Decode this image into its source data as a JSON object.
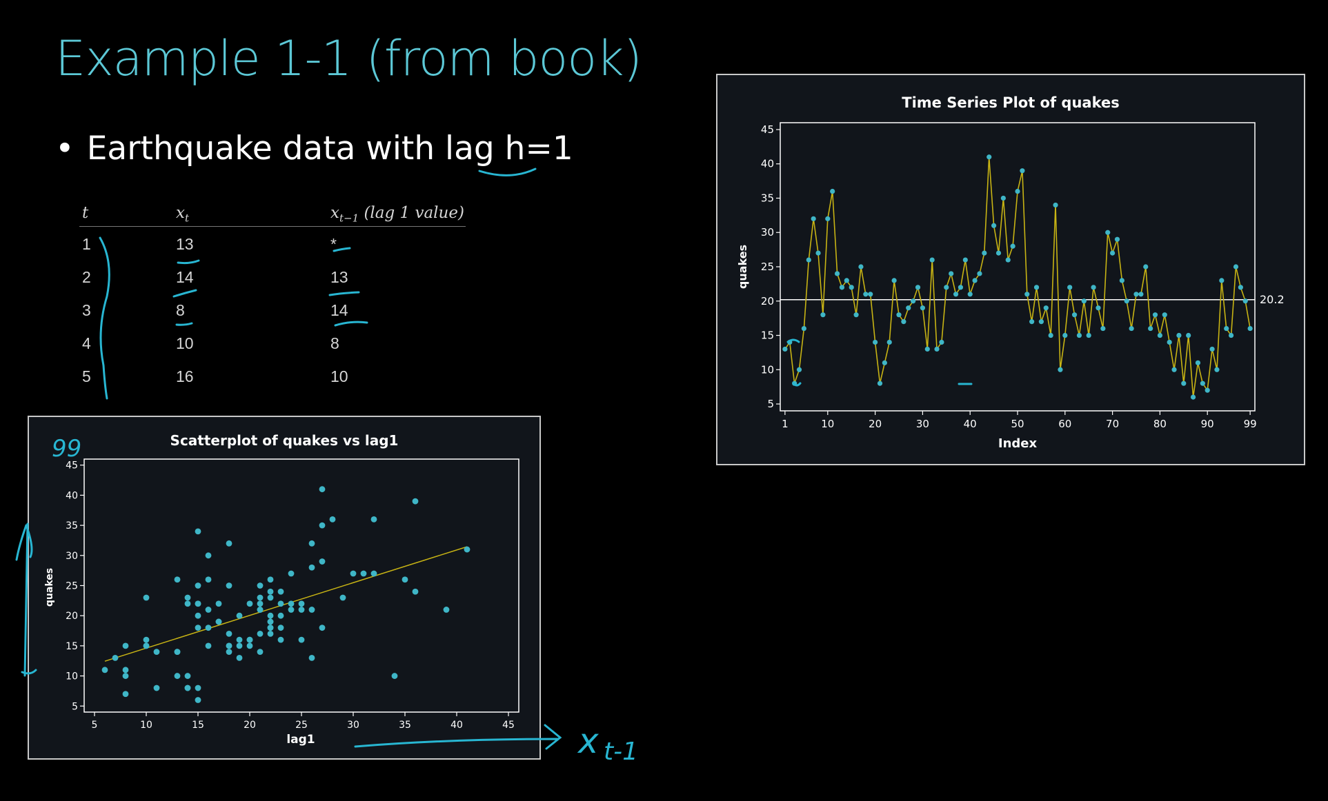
{
  "slide": {
    "title": "Example 1-1 (from book)",
    "bullet": "Earthquake data with lag h=1"
  },
  "lag_table": {
    "headers": {
      "t": "t",
      "xt": "x",
      "xt_sub": "t",
      "xlag": "x",
      "xlag_sub": "t−1",
      "xlag_note": "(lag 1 value)"
    },
    "rows": [
      {
        "t": "1",
        "xt": "13",
        "xlag": "*"
      },
      {
        "t": "2",
        "xt": "14",
        "xlag": "13"
      },
      {
        "t": "3",
        "xt": "8",
        "xlag": "14"
      },
      {
        "t": "4",
        "xt": "10",
        "xlag": "8"
      },
      {
        "t": "5",
        "xt": "16",
        "xlag": "10"
      }
    ]
  },
  "handwriting": {
    "x_axis_note": "x",
    "x_axis_note_sub": "t-1",
    "ninety_nine": "99"
  },
  "colors": {
    "accent": "#5cc8d6",
    "point": "#3fb6c7",
    "line": "#c8b414",
    "ink": "#28b6d2",
    "panel": "#11151b"
  },
  "chart_data": [
    {
      "type": "line",
      "title": "Time Series Plot of quakes",
      "xlabel": "Index",
      "ylabel": "quakes",
      "xlim": [
        0,
        100
      ],
      "ylim": [
        4,
        46
      ],
      "xticks": [
        1,
        10,
        20,
        30,
        40,
        50,
        60,
        70,
        80,
        90,
        99
      ],
      "yticks": [
        5,
        10,
        15,
        20,
        25,
        30,
        35,
        40,
        45
      ],
      "reference_line": {
        "value": 20.2,
        "label": "20.2"
      },
      "series": [
        {
          "values": [
            13,
            14,
            8,
            10,
            16,
            26,
            32,
            27,
            18,
            32,
            36,
            24,
            22,
            23,
            22,
            18,
            25,
            21,
            21,
            14,
            8,
            11,
            14,
            23,
            18,
            17,
            19,
            20,
            22,
            19,
            13,
            26,
            13,
            14,
            22,
            24,
            21,
            22,
            26,
            21,
            23,
            24,
            27,
            41,
            31,
            27,
            35,
            26,
            28,
            36,
            39,
            21,
            17,
            22,
            17,
            19,
            15,
            34,
            10,
            15,
            22,
            18,
            15,
            20,
            15,
            22,
            19,
            16,
            30,
            27,
            29,
            23,
            20,
            16,
            21,
            21,
            25,
            16,
            18,
            15,
            18,
            14,
            10,
            15,
            8,
            15,
            6,
            11,
            8,
            7,
            13,
            10,
            23,
            16,
            15,
            25,
            22,
            20,
            16
          ]
        }
      ]
    },
    {
      "type": "scatter",
      "title": "Scatterplot of quakes vs lag1",
      "xlabel": "lag1",
      "ylabel": "quakes",
      "xlim": [
        4,
        46
      ],
      "ylim": [
        4,
        46
      ],
      "xticks": [
        5,
        10,
        15,
        20,
        25,
        30,
        35,
        40,
        45
      ],
      "yticks": [
        5,
        10,
        15,
        20,
        25,
        30,
        35,
        40,
        45
      ],
      "fit_line": {
        "intercept": 9.19,
        "slope": 0.543
      },
      "points_x": [
        13,
        14,
        8,
        10,
        16,
        26,
        32,
        27,
        18,
        32,
        36,
        24,
        22,
        23,
        22,
        18,
        25,
        21,
        21,
        14,
        8,
        11,
        14,
        23,
        18,
        17,
        19,
        20,
        22,
        19,
        13,
        26,
        13,
        14,
        22,
        24,
        21,
        22,
        26,
        21,
        23,
        24,
        27,
        41,
        31,
        27,
        35,
        26,
        28,
        36,
        39,
        21,
        17,
        22,
        17,
        19,
        15,
        34,
        10,
        15,
        22,
        18,
        15,
        20,
        15,
        22,
        19,
        16,
        30,
        27,
        29,
        23,
        20,
        16,
        21,
        21,
        25,
        16,
        18,
        15,
        18,
        14,
        10,
        15,
        8,
        15,
        6,
        11,
        8,
        7,
        13,
        10,
        23,
        16,
        15,
        25,
        22,
        20
      ],
      "points_y": [
        14,
        8,
        10,
        16,
        26,
        32,
        27,
        18,
        32,
        36,
        24,
        22,
        23,
        22,
        18,
        25,
        21,
        21,
        14,
        8,
        11,
        14,
        23,
        18,
        17,
        19,
        20,
        22,
        19,
        13,
        26,
        13,
        14,
        22,
        24,
        21,
        22,
        26,
        21,
        23,
        24,
        27,
        41,
        31,
        27,
        35,
        26,
        28,
        36,
        39,
        21,
        17,
        22,
        17,
        19,
        15,
        34,
        10,
        15,
        22,
        18,
        15,
        20,
        15,
        22,
        19,
        16,
        30,
        27,
        29,
        23,
        20,
        16,
        21,
        21,
        25,
        16,
        18,
        15,
        18,
        14,
        10,
        15,
        8,
        15,
        6,
        11,
        8,
        7,
        13,
        10,
        23,
        16,
        15,
        25,
        22,
        20,
        16
      ]
    }
  ]
}
